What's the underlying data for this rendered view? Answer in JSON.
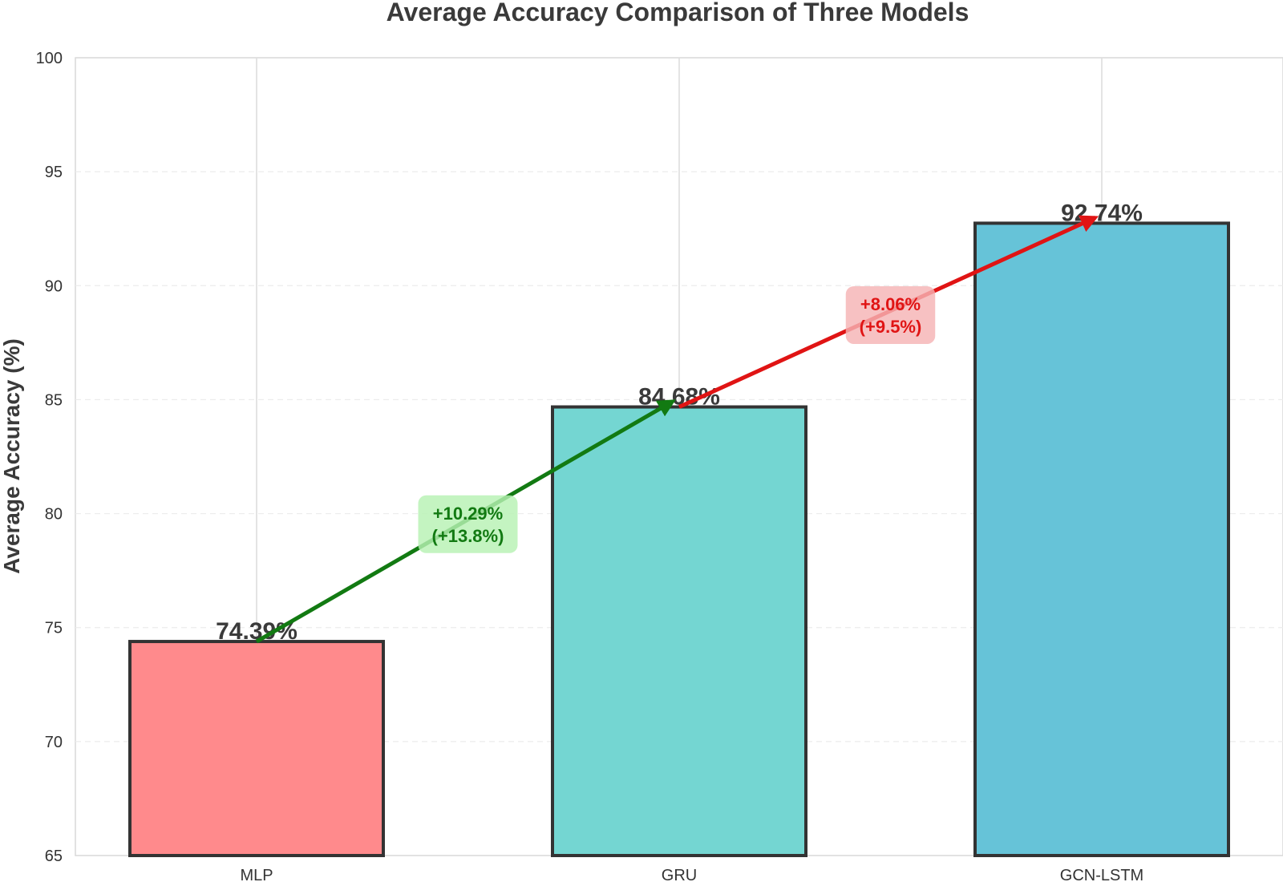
{
  "chart_data": {
    "type": "bar",
    "title": "Average Accuracy Comparison of Three Models",
    "xlabel": "",
    "ylabel": "Average Accuracy (%)",
    "ylim": [
      65,
      100
    ],
    "yticks": [
      65,
      70,
      75,
      80,
      85,
      90,
      95,
      100
    ],
    "grid": true,
    "categories": [
      "MLP",
      "GRU",
      "GCN-LSTM"
    ],
    "values": [
      74.39,
      84.68,
      92.74
    ],
    "value_labels": [
      "74.39%",
      "84.68%",
      "92.74%"
    ],
    "colors": [
      "#ff8a8c",
      "#74d6d2",
      "#66c3d8"
    ],
    "bar_edge_color": "#333333",
    "annotations": [
      {
        "from": "MLP",
        "to": "GRU",
        "line1": "+10.29%",
        "line2": "(+13.8%)",
        "arrow_color": "#127a12",
        "text_color": "#127a12",
        "box_color": "#b7f2b3"
      },
      {
        "from": "GRU",
        "to": "GCN-LSTM",
        "line1": "+8.06%",
        "line2": "(+9.5%)",
        "arrow_color": "#e01414",
        "text_color": "#e01414",
        "box_color": "#f5b3b5"
      }
    ]
  }
}
